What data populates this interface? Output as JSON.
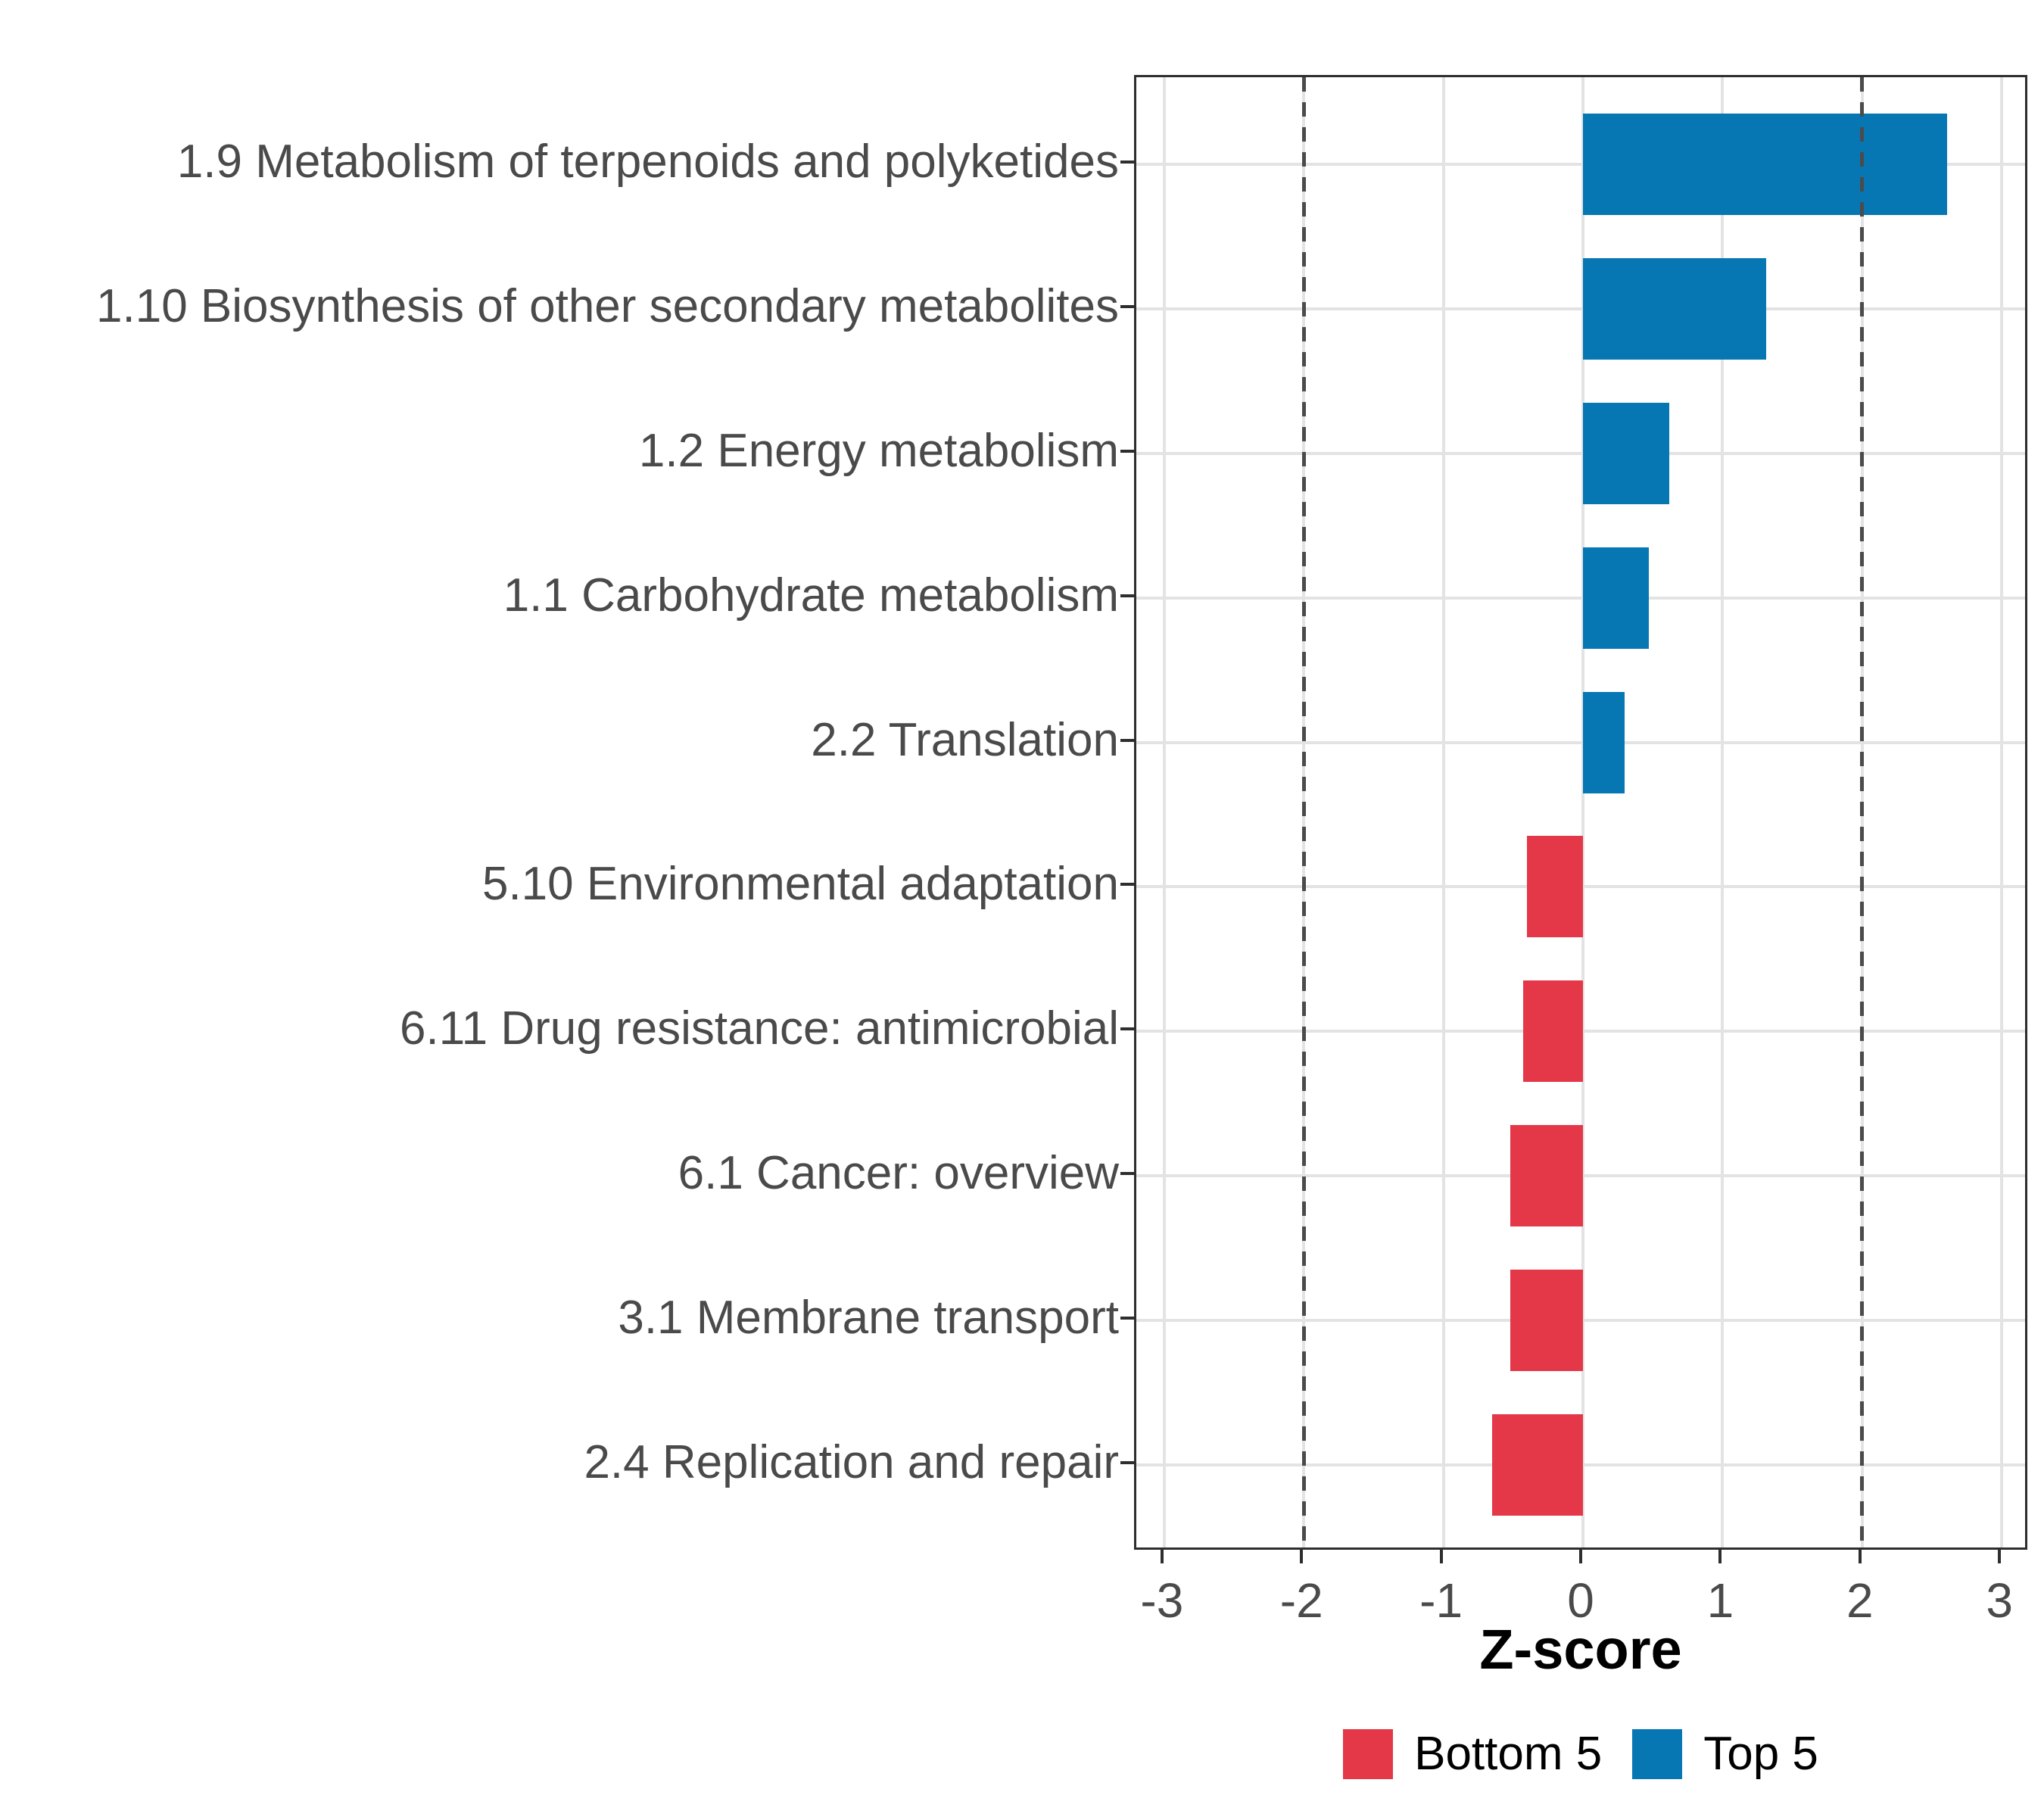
{
  "chart_data": {
    "type": "bar",
    "orientation": "horizontal",
    "title": "",
    "xlabel": "Z-score",
    "categories": [
      "1.9 Metabolism of terpenoids and polyketides",
      "1.10 Biosynthesis of other secondary metabolites",
      "1.2 Energy metabolism",
      "1.1 Carbohydrate metabolism",
      "2.2 Translation",
      "5.10 Environmental adaptation",
      "6.11 Drug resistance: antimicrobial",
      "6.1 Cancer: overview",
      "3.1 Membrane transport",
      "2.4 Replication and repair"
    ],
    "series_group": [
      "Top 5",
      "Top 5",
      "Top 5",
      "Top 5",
      "Top 5",
      "Bottom 5",
      "Bottom 5",
      "Bottom 5",
      "Bottom 5",
      "Bottom 5"
    ],
    "values": [
      2.61,
      1.31,
      0.62,
      0.47,
      0.3,
      -0.4,
      -0.43,
      -0.52,
      -0.52,
      -0.65
    ],
    "xticks": [
      -3,
      -2,
      -1,
      0,
      1,
      2,
      3
    ],
    "xtick_labels": [
      "-3",
      "-2",
      "-1",
      "0",
      "1",
      "2",
      "3"
    ],
    "xlim": [
      -3.2,
      3.2
    ],
    "reference_lines": [
      -2,
      2
    ],
    "grid": true,
    "bar_width_ratio": 0.7,
    "colors": {
      "Top 5": "#0777B4",
      "Bottom 5": "#E43849"
    },
    "legend": {
      "position": "bottom",
      "entries": [
        {
          "label": "Bottom 5",
          "color": "#E43849"
        },
        {
          "label": "Top 5",
          "color": "#0777B4"
        }
      ]
    }
  }
}
